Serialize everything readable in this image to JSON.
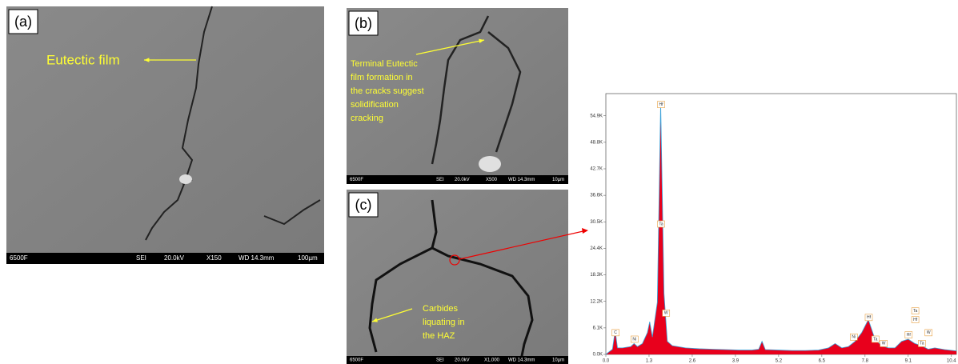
{
  "panels": [
    {
      "label": "(a)",
      "annotation": [
        "Eutectic film"
      ],
      "scale_bar": [
        "6500F",
        "SEI",
        "20.0kV",
        "X150",
        "WD 14.3mm",
        "100µm"
      ]
    },
    {
      "label": "(b)",
      "annotation": [
        "Terminal Eutectic",
        "film formation in",
        "the cracks suggest",
        "solidification",
        "cracking"
      ],
      "scale_bar": [
        "6500F",
        "SEI",
        "20.0kV",
        "X500",
        "WD 14.3mm",
        "10µm"
      ]
    },
    {
      "label": "(c)",
      "annotation": [
        "Carbides",
        "liquating in",
        "the HAZ"
      ],
      "scale_bar": [
        "6500F",
        "SEI",
        "20.0kV",
        "X1,000",
        "WD 14.3mm",
        "10µm"
      ]
    }
  ],
  "chart_data": {
    "type": "area",
    "color": "#e8001c",
    "line_color": "#3aa0d8",
    "x": [
      0,
      0.2,
      0.28,
      0.35,
      0.5,
      0.75,
      0.85,
      0.95,
      1.1,
      1.25,
      1.32,
      1.4,
      1.55,
      1.65,
      1.75,
      1.85,
      2.0,
      2.4,
      2.8,
      3.2,
      3.6,
      4.0,
      4.4,
      4.6,
      4.7,
      4.8,
      5.2,
      5.6,
      6.0,
      6.4,
      6.7,
      6.9,
      7.1,
      7.3,
      7.5,
      7.7,
      7.9,
      8.1,
      8.3,
      8.5,
      8.7,
      8.9,
      9.1,
      9.3,
      9.5,
      9.7,
      9.9,
      10.2,
      10.55
    ],
    "values": [
      0,
      1200,
      5500,
      1500,
      1500,
      1800,
      2500,
      1800,
      2500,
      5000,
      7500,
      4000,
      12000,
      58000,
      14000,
      3000,
      2000,
      1500,
      1300,
      1200,
      1100,
      1000,
      1000,
      1200,
      3000,
      1100,
      1000,
      900,
      900,
      1000,
      1500,
      2500,
      1500,
      1800,
      3000,
      5000,
      8000,
      3500,
      2000,
      1500,
      1500,
      3000,
      3500,
      2500,
      2000,
      1200,
      1500,
      1100,
      800
    ],
    "xlim": [
      0,
      10.55
    ],
    "ylim": [
      0,
      60000
    ],
    "xticks": [
      {
        "value": 0,
        "label": "0.0"
      },
      1.3,
      2.6,
      3.9,
      5.2,
      6.5,
      7.8,
      9.1,
      10.4
    ],
    "yticks": [
      {
        "value": 0,
        "label": "0.0K"
      },
      {
        "value": 6100,
        "label": "6.1K"
      },
      {
        "value": 12200,
        "label": "12.2K"
      },
      {
        "value": 18300,
        "label": "18.3K"
      },
      {
        "value": 24400,
        "label": "24.4K"
      },
      {
        "value": 30500,
        "label": "30.5K"
      },
      {
        "value": 36600,
        "label": "36.6K"
      },
      {
        "value": 42700,
        "label": "42.7K"
      },
      {
        "value": 48800,
        "label": "48.8K"
      },
      {
        "value": 54900,
        "label": "54.9K"
      }
    ],
    "annotations": [
      {
        "text": "Hf",
        "x": 1.65,
        "y": 57500
      },
      {
        "text": "Ta",
        "x": 1.65,
        "y": 30000
      },
      {
        "text": "W",
        "x": 1.8,
        "y": 9500
      },
      {
        "text": "C",
        "x": 0.28,
        "y": 5000
      },
      {
        "text": "Ni",
        "x": 0.85,
        "y": 3500
      },
      {
        "text": "Ni",
        "x": 7.45,
        "y": 4000
      },
      {
        "text": "Hf",
        "x": 7.9,
        "y": 8500
      },
      {
        "text": "Ta",
        "x": 8.1,
        "y": 3500
      },
      {
        "text": "W",
        "x": 8.35,
        "y": 2500
      },
      {
        "text": "Hf",
        "x": 9.1,
        "y": 4500
      },
      {
        "text": "Ta",
        "x": 9.3,
        "y": 10000
      },
      {
        "text": "Hf",
        "x": 9.3,
        "y": 8000
      },
      {
        "text": "W",
        "x": 9.7,
        "y": 5000
      },
      {
        "text": "Ta",
        "x": 9.5,
        "y": 2500
      }
    ]
  }
}
